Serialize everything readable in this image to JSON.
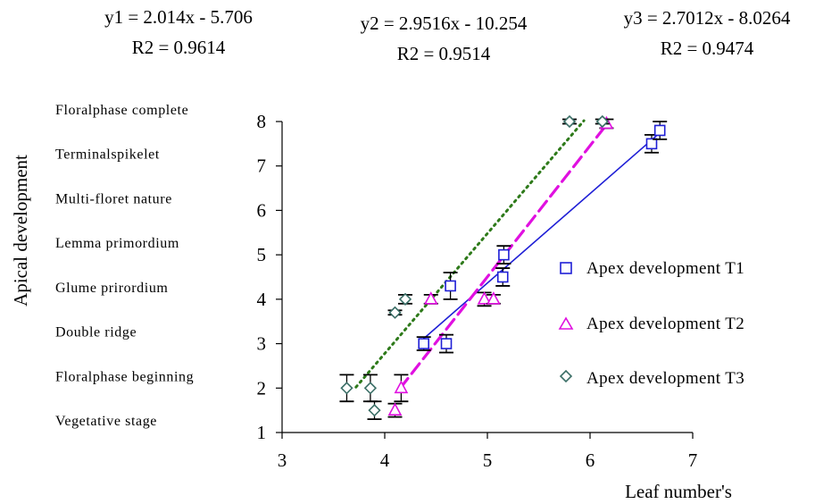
{
  "chart_data": {
    "type": "scatter",
    "title": "",
    "xlabel": "Leaf number's",
    "ylabel": "Apical development",
    "xlim": [
      3,
      7
    ],
    "ylim": [
      1,
      8
    ],
    "x_ticks": [
      "3",
      "4",
      "5",
      "6",
      "7"
    ],
    "y_ticks": [
      "1",
      "2",
      "3",
      "4",
      "5",
      "6",
      "7",
      "8"
    ],
    "y_stage_labels": [
      "Vegetative stage",
      "Floralphase beginning",
      "Double ridge",
      "Glume prirordium",
      "Lemma primordium",
      "Multi-floret nature",
      "Terminalspikelet",
      "Floralphase complete"
    ],
    "grid": false,
    "legend_position": "right",
    "equations": [
      {
        "line": "y1 = 2.014x - 5.706",
        "r2": "R2 = 0.9614"
      },
      {
        "line": "y2 = 2.9516x - 10.254",
        "r2": "R2 = 0.9514"
      },
      {
        "line": "y3 = 2.7012x - 8.0264",
        "r2": "R2 = 0.9474"
      }
    ],
    "series": [
      {
        "name": "Apex development T1",
        "color": "#1f1fd6",
        "marker": "square",
        "points": [
          {
            "x": 4.38,
            "y": 3.0,
            "err": 0.15
          },
          {
            "x": 4.6,
            "y": 3.0,
            "err": 0.2
          },
          {
            "x": 4.64,
            "y": 4.3,
            "err": 0.3
          },
          {
            "x": 5.15,
            "y": 4.5,
            "err": 0.2
          },
          {
            "x": 5.16,
            "y": 5.0,
            "err": 0.2
          },
          {
            "x": 6.6,
            "y": 7.5,
            "err": 0.2
          },
          {
            "x": 6.68,
            "y": 7.8,
            "err": 0.2
          }
        ],
        "trend": {
          "slope": 2.014,
          "intercept": -5.706,
          "x_start": 4.38,
          "x_end": 6.68,
          "style": "solid"
        }
      },
      {
        "name": "Apex development T2",
        "color": "#e010e0",
        "marker": "triangle",
        "points": [
          {
            "x": 4.1,
            "y": 1.5,
            "err": 0.15
          },
          {
            "x": 4.16,
            "y": 2.0,
            "err": 0.3
          },
          {
            "x": 4.45,
            "y": 4.0,
            "err": 0.1
          },
          {
            "x": 4.97,
            "y": 4.0,
            "err": 0.15
          },
          {
            "x": 5.06,
            "y": 4.0,
            "err": 0.1
          },
          {
            "x": 6.16,
            "y": 7.95,
            "err": 0.1
          }
        ],
        "trend": {
          "slope": 2.9516,
          "intercept": -10.254,
          "x_start": 4.15,
          "x_end": 6.16,
          "style": "dashed"
        }
      },
      {
        "name": "Apex development T3",
        "color": "#3a6e66",
        "marker": "diamond",
        "points": [
          {
            "x": 3.63,
            "y": 2.0,
            "err": 0.3
          },
          {
            "x": 3.86,
            "y": 2.0,
            "err": 0.3
          },
          {
            "x": 3.9,
            "y": 1.5,
            "err": 0.2
          },
          {
            "x": 4.1,
            "y": 3.7,
            "err": 0.05
          },
          {
            "x": 4.2,
            "y": 4.0,
            "err": 0.1
          },
          {
            "x": 5.8,
            "y": 8.0,
            "err": 0.05
          },
          {
            "x": 6.12,
            "y": 8.0,
            "err": 0.05
          }
        ],
        "trend": {
          "slope": 2.7012,
          "intercept": -8.0264,
          "x_start": 3.72,
          "x_end": 5.94,
          "style": "dotted",
          "color": "#2e7a1a"
        }
      }
    ]
  }
}
